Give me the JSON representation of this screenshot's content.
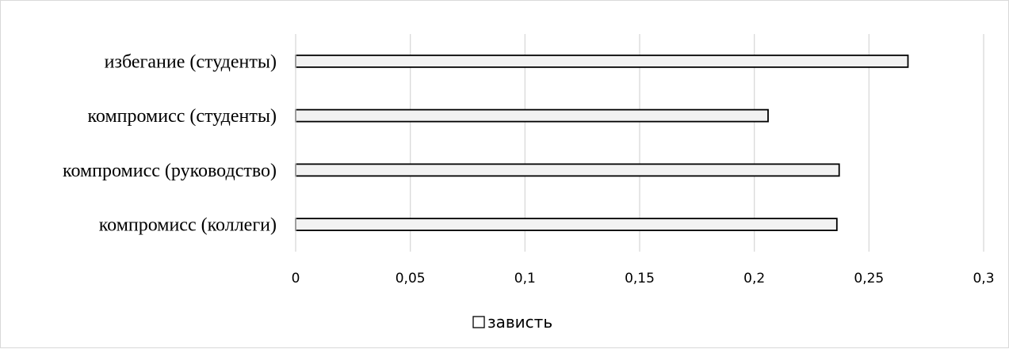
{
  "chart_data": {
    "type": "bar",
    "orientation": "horizontal",
    "categories": [
      "избегание (студенты)",
      "компромисс (студенты)",
      "компромисс (руководство)",
      "компромисс (коллеги)"
    ],
    "series": [
      {
        "name": "зависть",
        "values": [
          0.267,
          0.206,
          0.237,
          0.236
        ],
        "color": "#f2f2f2",
        "stroke": "#000000"
      }
    ],
    "x_ticks": [
      "0",
      "0,05",
      "0,1",
      "0,15",
      "0,2",
      "0,25",
      "0,3"
    ],
    "xlim": [
      0,
      0.3
    ],
    "grid": true,
    "legend_position": "bottom"
  }
}
